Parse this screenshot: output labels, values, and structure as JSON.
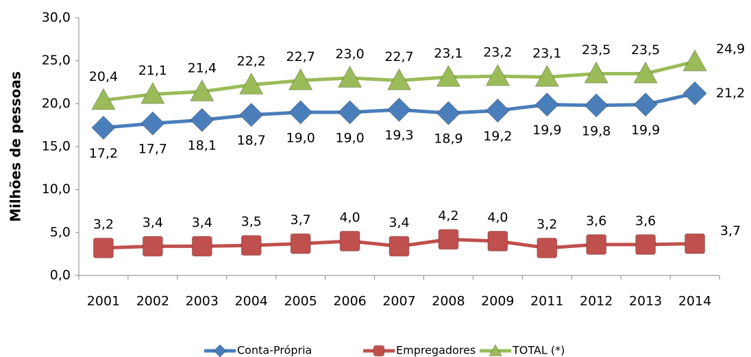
{
  "chart_data": {
    "type": "line",
    "y_label": "Milhões de pessoas",
    "categories": [
      "2001",
      "2002",
      "2003",
      "2004",
      "2005",
      "2006",
      "2007",
      "2008",
      "2009",
      "2011",
      "2012",
      "2013",
      "2014"
    ],
    "series": [
      {
        "name": "Conta-Própria",
        "color": "#4a7ebb",
        "marker": "diamond",
        "label_position": "below",
        "values": [
          17.2,
          17.7,
          18.1,
          18.7,
          19.0,
          19.0,
          19.3,
          18.9,
          19.2,
          19.9,
          19.8,
          19.9,
          21.2
        ],
        "value_labels": [
          "17,2",
          "17,7",
          "18,1",
          "18,7",
          "19,0",
          "19,0",
          "19,3",
          "18,9",
          "19,2",
          "19,9",
          "19,8",
          "19,9",
          "21,2"
        ]
      },
      {
        "name": "Empregadores",
        "color": "#c0504d",
        "marker": "square",
        "label_position": "above",
        "values": [
          3.2,
          3.4,
          3.4,
          3.5,
          3.7,
          4.0,
          3.4,
          4.2,
          4.0,
          3.2,
          3.6,
          3.6,
          3.7
        ],
        "value_labels": [
          "3,2",
          "3,4",
          "3,4",
          "3,5",
          "3,7",
          "4,0",
          "3,4",
          "4,2",
          "4,0",
          "3,2",
          "3,6",
          "3,6",
          "3,7"
        ]
      },
      {
        "name": "TOTAL (*)",
        "color": "#9bbb59",
        "marker": "triangle",
        "label_position": "above",
        "values": [
          20.4,
          21.1,
          21.4,
          22.2,
          22.7,
          23.0,
          22.7,
          23.1,
          23.2,
          23.1,
          23.5,
          23.5,
          24.9
        ],
        "value_labels": [
          "20,4",
          "21,1",
          "21,4",
          "22,2",
          "22,7",
          "23,0",
          "22,7",
          "23,1",
          "23,2",
          "23,1",
          "23,5",
          "23,5",
          "24,9"
        ]
      }
    ],
    "ylim": [
      0,
      30
    ],
    "yticks": [
      {
        "value": 0,
        "label": "0,0"
      },
      {
        "value": 5,
        "label": "5,0"
      },
      {
        "value": 10,
        "label": "10,0"
      },
      {
        "value": 15,
        "label": "15,0"
      },
      {
        "value": 20,
        "label": "20,0"
      },
      {
        "value": 25,
        "label": "25,0"
      },
      {
        "value": 30,
        "label": "30,0"
      }
    ],
    "grid": false,
    "legend": "bottom"
  }
}
